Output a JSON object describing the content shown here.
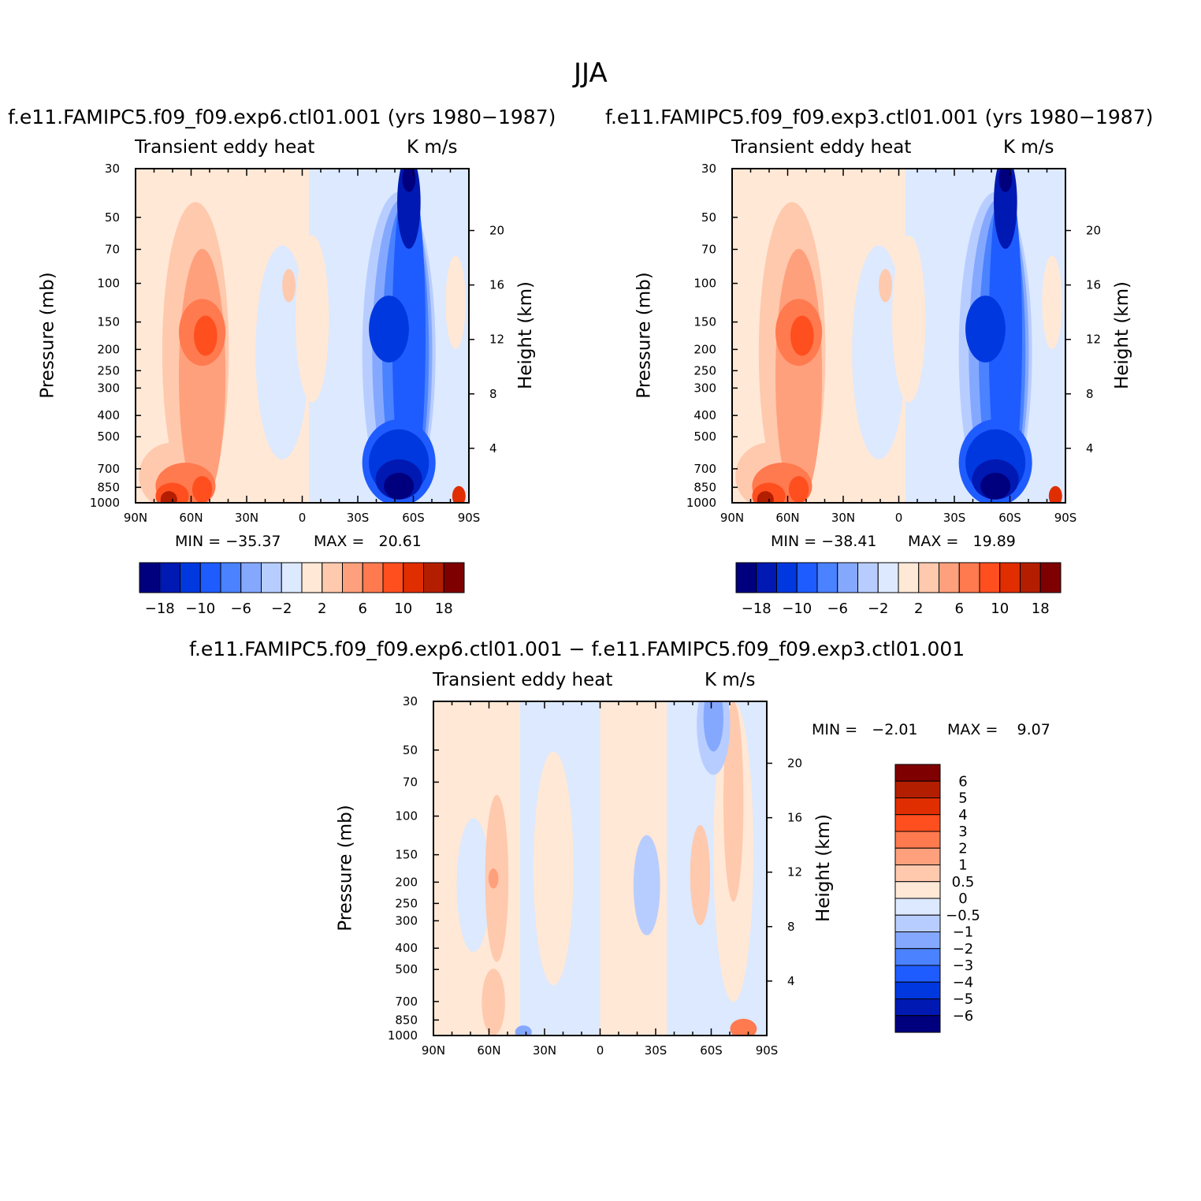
{
  "figure_title": "JJA",
  "colors": {
    "scale": [
      "#00007f",
      "#0019b2",
      "#0038e0",
      "#1f5cff",
      "#4a82ff",
      "#85a8ff",
      "#b8cdff",
      "#dce9ff",
      "#ffe8d6",
      "#ffc9ae",
      "#ffa07c",
      "#ff7a4f",
      "#ff4f1f",
      "#e02e00",
      "#b31e00",
      "#7f0000"
    ]
  },
  "chart_data": [
    {
      "type": "contour",
      "title": "f.e11.FAMIPC5.f09_f09.exp6.ctl01.001 (yrs 1980−1987)",
      "variable_label": "Transient eddy heat",
      "units": "K m/s",
      "ylabel": "Pressure (mb)",
      "y2label": "Height (km)",
      "x_ticks": [
        "90N",
        "60N",
        "30N",
        "0",
        "30S",
        "60S",
        "90S"
      ],
      "y_ticks": [
        "30",
        "50",
        "70",
        "100",
        "150",
        "200",
        "250",
        "300",
        "400",
        "500",
        "700",
        "850",
        "1000"
      ],
      "y2_ticks": [
        "20",
        "16",
        "12",
        "8",
        "4"
      ],
      "min_text": "MIN = −35.37",
      "max_text": "MAX =   20.61",
      "min": -35.37,
      "max": 20.61,
      "colorbar_labels": [
        "−18",
        "−10",
        "−6",
        "−2",
        "2",
        "6",
        "10",
        "18"
      ]
    },
    {
      "type": "contour",
      "title": "f.e11.FAMIPC5.f09_f09.exp3.ctl01.001 (yrs 1980−1987)",
      "variable_label": "Transient eddy heat",
      "units": "K m/s",
      "ylabel": "Pressure (mb)",
      "y2label": "Height (km)",
      "x_ticks": [
        "90N",
        "60N",
        "30N",
        "0",
        "30S",
        "60S",
        "90S"
      ],
      "y_ticks": [
        "30",
        "50",
        "70",
        "100",
        "150",
        "200",
        "250",
        "300",
        "400",
        "500",
        "700",
        "850",
        "1000"
      ],
      "y2_ticks": [
        "20",
        "16",
        "12",
        "8",
        "4"
      ],
      "min_text": "MIN = −38.41",
      "max_text": "MAX =   19.89",
      "min": -38.41,
      "max": 19.89,
      "colorbar_labels": [
        "−18",
        "−10",
        "−6",
        "−2",
        "2",
        "6",
        "10",
        "18"
      ]
    },
    {
      "type": "contour",
      "title": "f.e11.FAMIPC5.f09_f09.exp6.ctl01.001 − f.e11.FAMIPC5.f09_f09.exp3.ctl01.001",
      "variable_label": "Transient eddy heat",
      "units": "K m/s",
      "ylabel": "Pressure (mb)",
      "y2label": "Height (km)",
      "x_ticks": [
        "90N",
        "60N",
        "30N",
        "0",
        "30S",
        "60S",
        "90S"
      ],
      "y_ticks": [
        "30",
        "50",
        "70",
        "100",
        "150",
        "200",
        "250",
        "300",
        "400",
        "500",
        "700",
        "850",
        "1000"
      ],
      "y2_ticks": [
        "20",
        "16",
        "12",
        "8",
        "4"
      ],
      "min_text": "MIN =   −2.01",
      "max_text": "MAX =    9.07",
      "min": -2.01,
      "max": 9.07,
      "colorbar_labels": [
        "6",
        "5",
        "4",
        "3",
        "2",
        "1",
        "0.5",
        "0",
        "−0.5",
        "−1",
        "−2",
        "−3",
        "−4",
        "−5",
        "−6"
      ]
    }
  ]
}
